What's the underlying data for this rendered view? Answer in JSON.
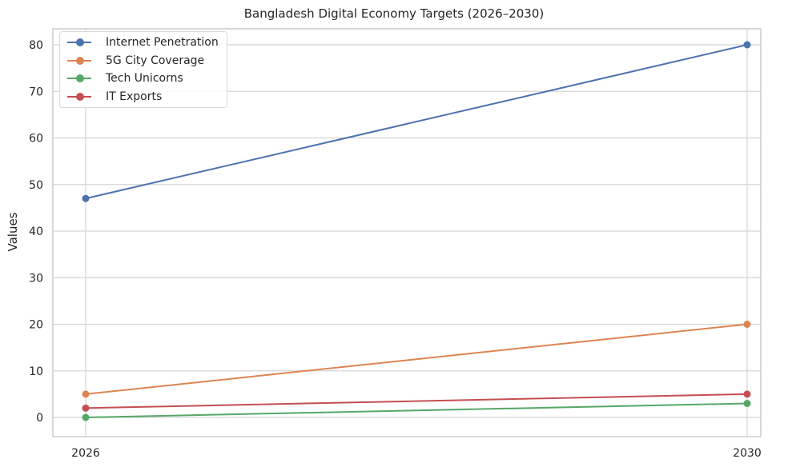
{
  "chart_data": {
    "type": "line",
    "title": "Bangladesh Digital Economy Targets (2026–2030)",
    "xlabel": "",
    "ylabel": "Values",
    "x": [
      "2026",
      "2030"
    ],
    "ylim": [
      -4,
      84
    ],
    "yticks": [
      0,
      10,
      20,
      30,
      40,
      50,
      60,
      70,
      80
    ],
    "grid": true,
    "legend_position": "upper left",
    "series": [
      {
        "name": "Internet Penetration",
        "color": "#4c72b0",
        "values": [
          47,
          80
        ]
      },
      {
        "name": "5G City Coverage",
        "color": "#dd8452",
        "values": [
          5,
          20
        ]
      },
      {
        "name": "Tech Unicorns",
        "color": "#55a868",
        "values": [
          0,
          3
        ]
      },
      {
        "name": "IT Exports",
        "color": "#c44e52",
        "values": [
          2,
          5
        ]
      }
    ]
  },
  "labels": {
    "title": "Bangladesh Digital Economy Targets (2026–2030)",
    "ylabel": "Values"
  }
}
